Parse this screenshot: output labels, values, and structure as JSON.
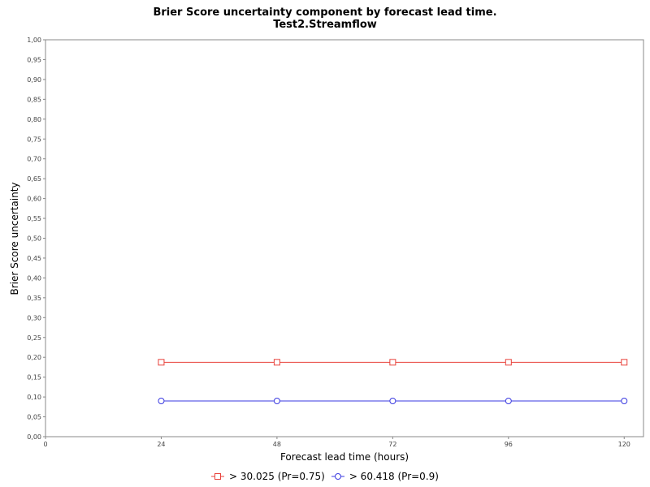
{
  "chart_data": {
    "type": "line",
    "title": "Brier Score uncertainty component by forecast lead time.",
    "subtitle": "Test2.Streamflow",
    "xlabel": "Forecast lead time (hours)",
    "ylabel": "Brier Score uncertainty",
    "xlim": [
      0,
      124
    ],
    "ylim": [
      0,
      1
    ],
    "x_ticks": [
      "0",
      "24",
      "48",
      "72",
      "96",
      "120"
    ],
    "y_ticks": [
      "0,00",
      "0,05",
      "0,10",
      "0,15",
      "0,20",
      "0,25",
      "0,30",
      "0,35",
      "0,40",
      "0,45",
      "0,50",
      "0,55",
      "0,60",
      "0,65",
      "0,70",
      "0,75",
      "0,80",
      "0,85",
      "0,90",
      "0,95",
      "1,00"
    ],
    "x": [
      24,
      48,
      72,
      96,
      120
    ],
    "series": [
      {
        "name": "> 30.025 (Pr=0.75)",
        "values": [
          0.1875,
          0.1875,
          0.1875,
          0.1875,
          0.1875
        ],
        "color": "#e8423b",
        "marker": "square"
      },
      {
        "name": "> 60.418 (Pr=0.9)",
        "values": [
          0.09,
          0.09,
          0.09,
          0.09,
          0.09
        ],
        "color": "#3a3ae0",
        "marker": "circle"
      }
    ],
    "grid": false,
    "legend_position": "bottom"
  }
}
